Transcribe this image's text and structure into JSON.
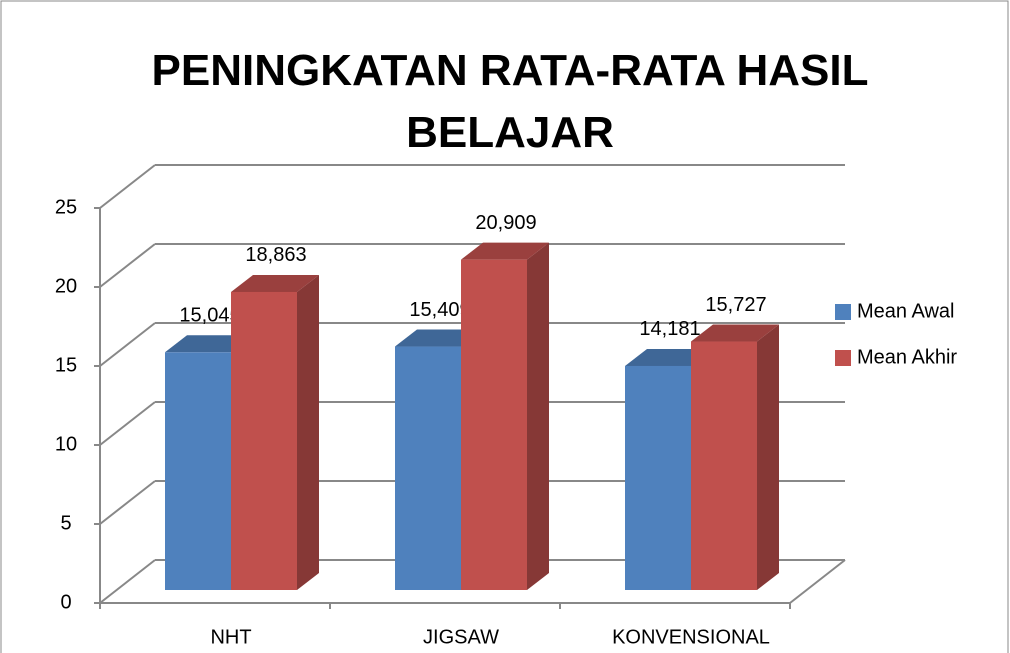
{
  "chart_data": {
    "type": "bar3d",
    "title": "PENINGKATAN RATA-RATA HASIL BELAJAR",
    "categories": [
      "NHT",
      "JIGSAW",
      "KONVENSIONAL"
    ],
    "series": [
      {
        "name": "Mean Awal",
        "color": "#4f81bd",
        "values": [
          15.045,
          15.409,
          14.181
        ],
        "value_labels": [
          "15,045",
          "15,409",
          "14,181"
        ]
      },
      {
        "name": "Mean Akhir",
        "color": "#c0504d",
        "values": [
          18.863,
          20.909,
          15.727
        ],
        "value_labels": [
          "18,863",
          "20,909",
          "15,727"
        ]
      }
    ],
    "ylim": [
      0,
      25
    ],
    "yticks": [
      0,
      5,
      10,
      15,
      20,
      25
    ],
    "grid": true,
    "legend": "right"
  }
}
